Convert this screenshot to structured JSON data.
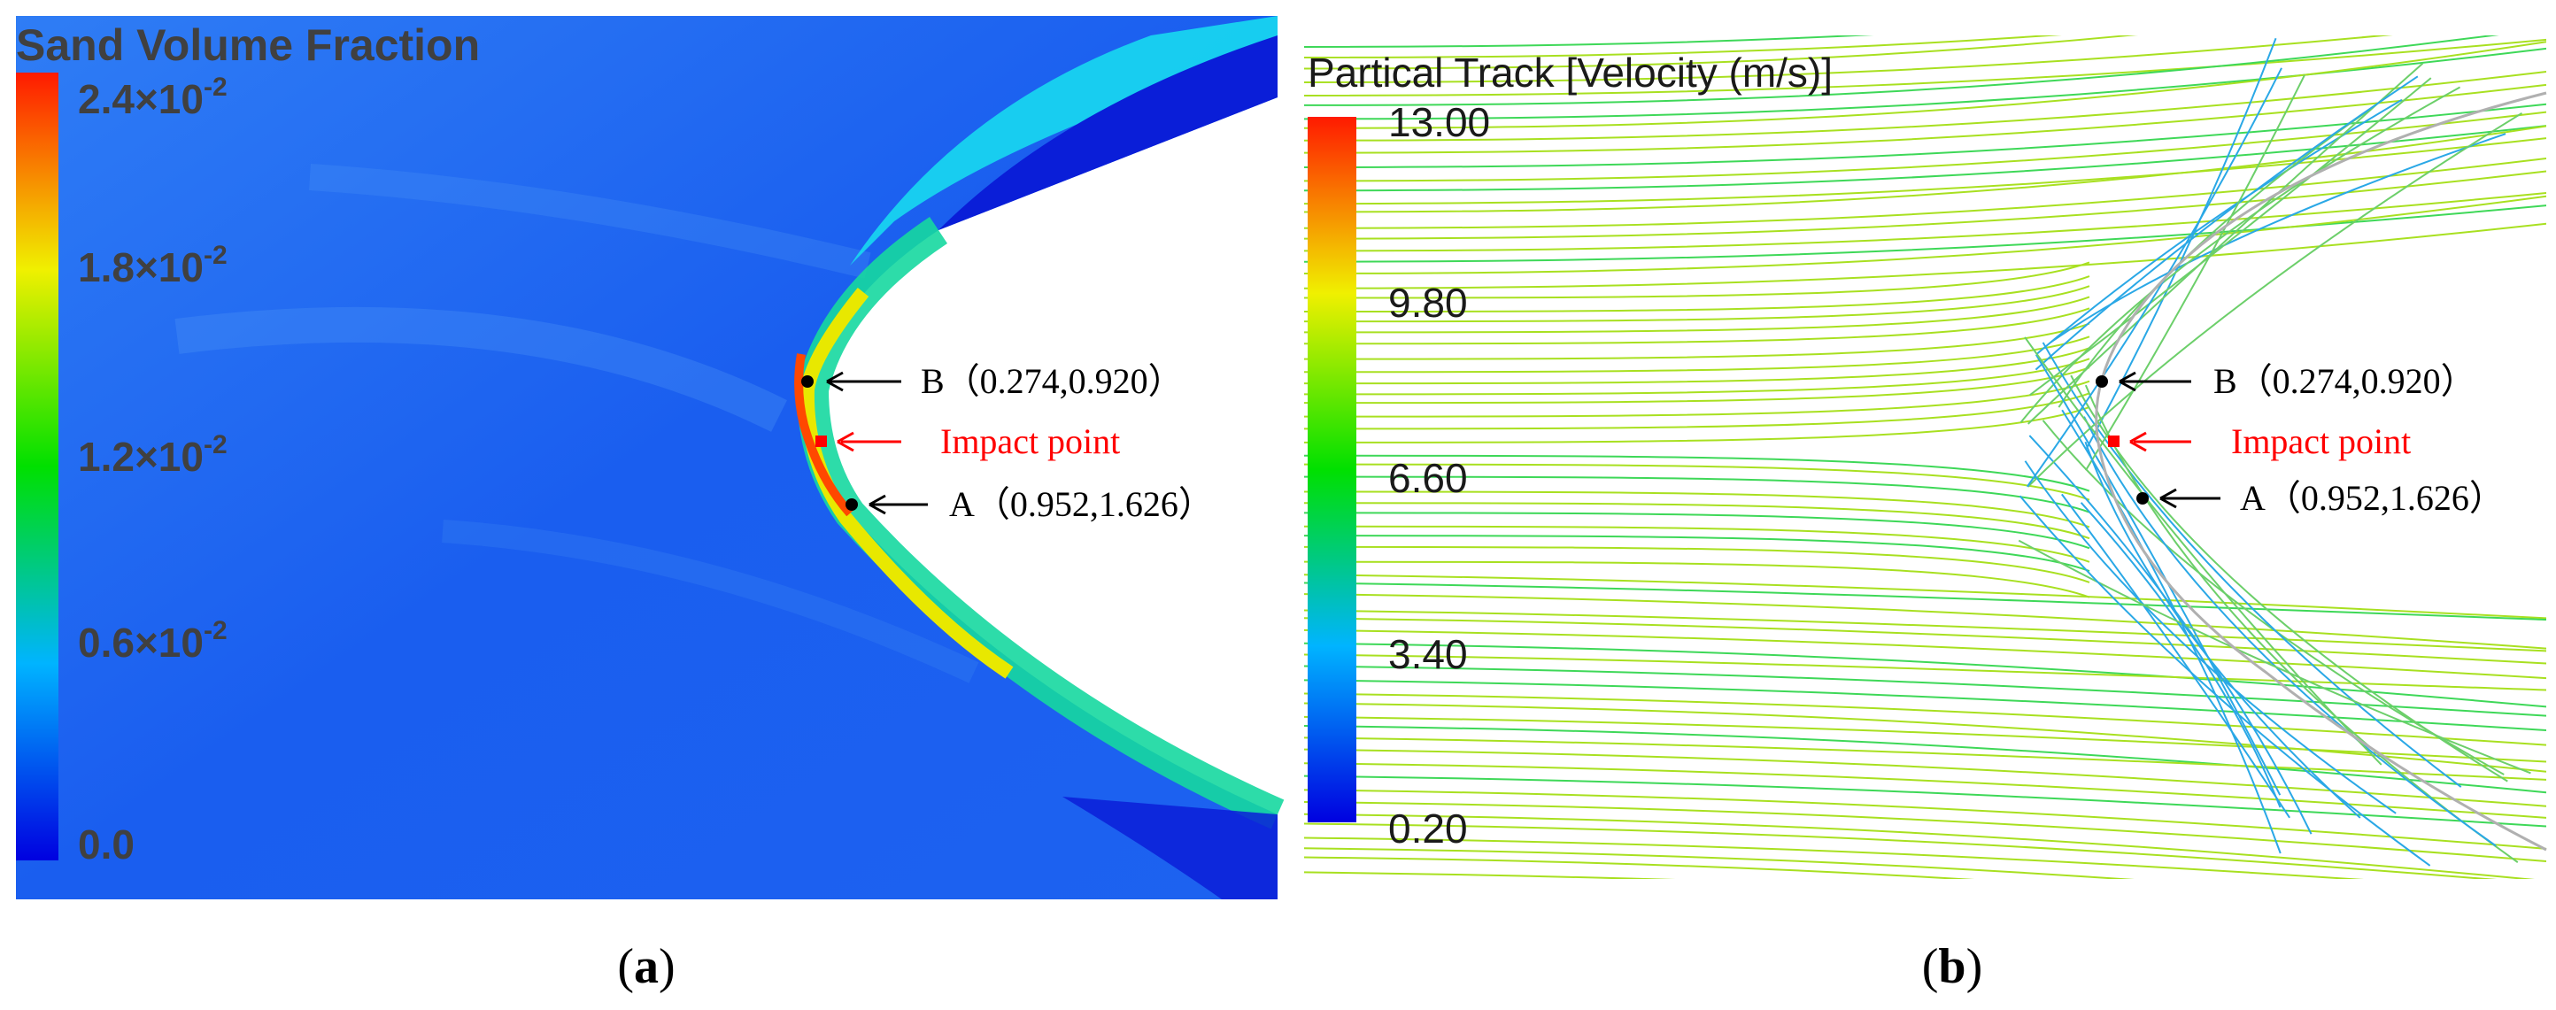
{
  "panel_a": {
    "legend_title": "Sand Volume Fraction",
    "ticks": [
      {
        "mantissa": "2.4×10",
        "exp": "-2"
      },
      {
        "mantissa": "1.8×10",
        "exp": "-2"
      },
      {
        "mantissa": "1.2×10",
        "exp": "-2"
      },
      {
        "mantissa": "0.6×10",
        "exp": "-2"
      },
      {
        "mantissa": "0.0",
        "exp": ""
      }
    ],
    "point_b": {
      "label": "B",
      "coords": "（0.274,0.920）"
    },
    "impact": {
      "label": "Impact point"
    },
    "point_a": {
      "label": "A",
      "coords": "（0.952,1.626）"
    },
    "caption": {
      "open": "(",
      "letter": "a",
      "close": ")"
    }
  },
  "panel_b": {
    "legend_title": "Partical Track [Velocity (m/s)]",
    "ticks": [
      "13.00",
      "9.80",
      "6.60",
      "3.40",
      "0.20"
    ],
    "point_b": {
      "label": "B",
      "coords": "（0.274,0.920）"
    },
    "impact": {
      "label": "Impact point"
    },
    "point_a": {
      "label": "A",
      "coords": "（0.952,1.626）"
    },
    "caption": {
      "open": "(",
      "letter": "b",
      "close": ")"
    }
  },
  "colors": {
    "flow_blue": "#1f5ef0",
    "annotation_red": "#ff0000",
    "track_green": "#a8e020",
    "track_blue": "#2aa8e6"
  }
}
